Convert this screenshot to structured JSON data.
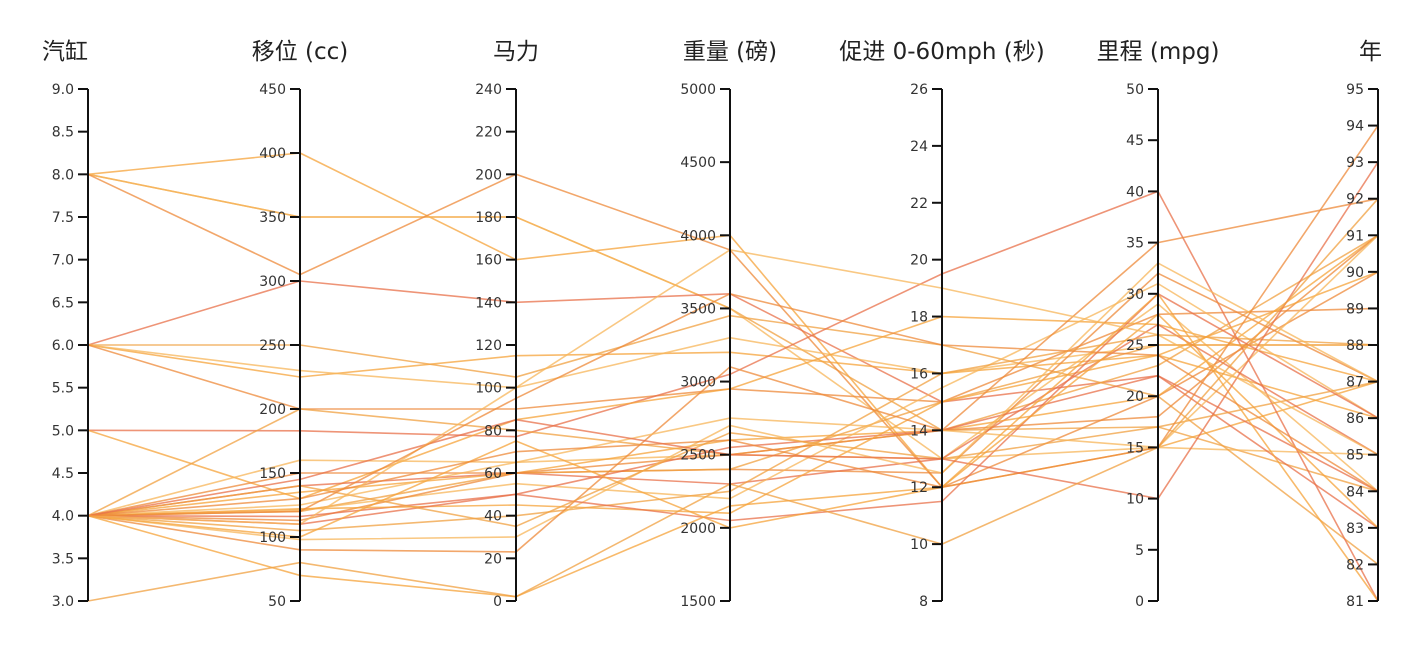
{
  "chart_data": {
    "type": "parallel-coordinates",
    "line_colors": [
      "#f5a33a",
      "#f0a040",
      "#f7b65a",
      "#ee8a3a",
      "#e8704a"
    ],
    "axes": [
      {
        "key": "cyl",
        "label": "汽缸",
        "min": 3,
        "max": 9,
        "ticks": [
          "3.0",
          "3.5",
          "4.0",
          "4.5",
          "5.0",
          "5.5",
          "6.0",
          "6.5",
          "7.0",
          "7.5",
          "8.0",
          "8.5",
          "9.0"
        ]
      },
      {
        "key": "disp",
        "label": "移位 (cc)",
        "min": 50,
        "max": 450,
        "ticks": [
          "50",
          "100",
          "150",
          "200",
          "250",
          "300",
          "350",
          "400",
          "450"
        ]
      },
      {
        "key": "hp",
        "label": "马力",
        "min": 0,
        "max": 240,
        "ticks": [
          "0",
          "20",
          "40",
          "60",
          "80",
          "100",
          "120",
          "140",
          "160",
          "180",
          "200",
          "220",
          "240"
        ]
      },
      {
        "key": "wt",
        "label": "重量 (磅)",
        "min": 1500,
        "max": 5000,
        "ticks": [
          "1500",
          "2000",
          "2500",
          "3000",
          "3500",
          "4000",
          "4500",
          "5000"
        ]
      },
      {
        "key": "acc",
        "label": "促进 0-60mph (秒)",
        "min": 8,
        "max": 26,
        "ticks": [
          "8",
          "10",
          "12",
          "14",
          "16",
          "18",
          "20",
          "22",
          "24",
          "26"
        ]
      },
      {
        "key": "mpg",
        "label": "里程 (mpg)",
        "min": 0,
        "max": 50,
        "ticks": [
          "0",
          "5",
          "10",
          "15",
          "20",
          "25",
          "30",
          "35",
          "40",
          "45",
          "50"
        ]
      },
      {
        "key": "yr",
        "label": "年",
        "min": 81,
        "max": 95,
        "ticks": [
          "81",
          "82",
          "83",
          "84",
          "85",
          "86",
          "87",
          "88",
          "89",
          "90",
          "91",
          "92",
          "93",
          "94",
          "95"
        ]
      }
    ],
    "records": [
      [
        8,
        400,
        160,
        4000,
        12,
        15,
        87
      ],
      [
        8,
        350,
        180,
        3500,
        14,
        17,
        84
      ],
      [
        8,
        350,
        180,
        3500,
        13,
        15,
        85
      ],
      [
        8,
        305,
        200,
        3900,
        12,
        20,
        90
      ],
      [
        6,
        300,
        140,
        3600,
        15,
        22,
        83
      ],
      [
        6,
        225,
        115,
        3200,
        16,
        24,
        86
      ],
      [
        6,
        250,
        105,
        3450,
        17,
        20,
        82
      ],
      [
        6,
        230,
        100,
        3300,
        16,
        25,
        88
      ],
      [
        6,
        200,
        90,
        2950,
        15,
        28,
        89
      ],
      [
        5,
        183,
        77,
        3050,
        19.5,
        40,
        81
      ],
      [
        5,
        130,
        85,
        2950,
        18,
        27,
        87
      ],
      [
        4,
        200,
        80,
        2500,
        14,
        23,
        91
      ],
      [
        4,
        160,
        65,
        2500,
        13,
        29,
        84
      ],
      [
        4,
        150,
        60,
        2400,
        12.5,
        32,
        87
      ],
      [
        4,
        140,
        60,
        2300,
        13,
        27,
        85
      ],
      [
        4,
        135,
        60,
        2600,
        14,
        20,
        91
      ],
      [
        4,
        120,
        60,
        2400,
        15,
        25,
        88
      ],
      [
        4,
        121,
        55,
        2200,
        15.5,
        31,
        86
      ],
      [
        4,
        113,
        60,
        2500,
        14,
        18,
        91
      ],
      [
        4,
        116,
        50,
        2550,
        14,
        22,
        84
      ],
      [
        4,
        122,
        45,
        2100,
        15,
        24,
        90
      ],
      [
        4,
        105,
        40,
        2250,
        16,
        26,
        88
      ],
      [
        4,
        98,
        30,
        2700,
        12.5,
        33,
        87
      ],
      [
        4,
        90,
        23,
        3100,
        14,
        35,
        92
      ],
      [
        4,
        110,
        50,
        2050,
        11.5,
        30,
        86
      ],
      [
        4,
        100,
        75,
        2000,
        12,
        28,
        83
      ],
      [
        4,
        140,
        35,
        2650,
        13,
        17,
        87
      ],
      [
        4,
        125,
        65,
        2750,
        14,
        15,
        91
      ],
      [
        4,
        130,
        70,
        2600,
        12,
        15,
        94
      ],
      [
        4,
        145,
        85,
        2500,
        13,
        10,
        93
      ],
      [
        4,
        70,
        2,
        2150,
        12,
        30,
        81
      ],
      [
        3,
        80,
        2,
        2300,
        10,
        15,
        92
      ],
      [
        4,
        110,
        100,
        3900,
        19,
        26,
        85
      ],
      [
        4,
        120,
        95,
        3600,
        17,
        24,
        84
      ]
    ]
  }
}
